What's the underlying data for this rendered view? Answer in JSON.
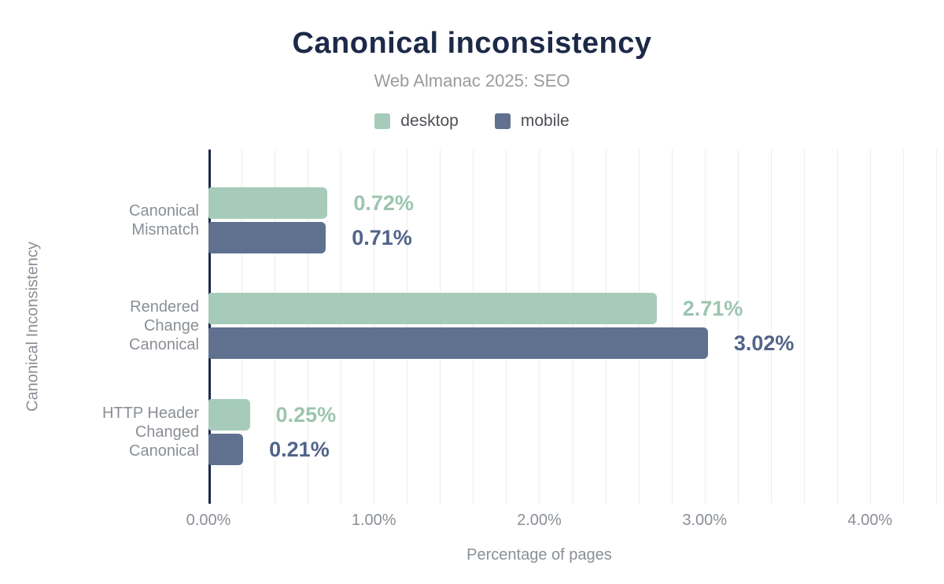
{
  "title": "Canonical inconsistency",
  "subtitle": "Web Almanac 2025: SEO",
  "colors": {
    "title": "#1c2948",
    "axis_line": "#1c2948",
    "gridline": "#ededed",
    "muted_text": "#8a8f96",
    "legend_text": "#4c4f55",
    "desktop_bar": "#a6cbba",
    "desktop_value_label": "#9cc5b0",
    "mobile_bar": "#60718f",
    "mobile_value_label": "#526488"
  },
  "chart_data": {
    "type": "bar",
    "orientation": "horizontal",
    "title": "Canonical inconsistency",
    "subtitle": "Web Almanac 2025: SEO",
    "categories": [
      "Canonical Mismatch",
      "Rendered Change Canonical",
      "HTTP Header Changed Canonical"
    ],
    "category_lines": [
      [
        "Canonical",
        "Mismatch"
      ],
      [
        "Rendered",
        "Change",
        "Canonical"
      ],
      [
        "HTTP Header",
        "Changed",
        "Canonical"
      ]
    ],
    "series": [
      {
        "name": "desktop",
        "values": [
          0.72,
          2.71,
          0.25
        ],
        "value_labels": [
          "0.72%",
          "2.71%",
          "0.25%"
        ],
        "bar_color": "#a6cbba",
        "label_color": "#9cc5b0"
      },
      {
        "name": "mobile",
        "values": [
          0.71,
          3.02,
          0.21
        ],
        "value_labels": [
          "0.71%",
          "3.02%",
          "0.21%"
        ],
        "bar_color": "#60718f",
        "label_color": "#526488"
      }
    ],
    "xlabel": "Percentage of pages",
    "ylabel": "Canonical Inconsistency",
    "xlim": [
      0,
      4.4
    ],
    "x_ticks": [
      {
        "value": 0,
        "label": "0.00%"
      },
      {
        "value": 1,
        "label": "1.00%"
      },
      {
        "value": 2,
        "label": "2.00%"
      },
      {
        "value": 3,
        "label": "3.00%"
      },
      {
        "value": 4,
        "label": "4.00%"
      }
    ],
    "gridline_step": 0.2,
    "grid": true,
    "legend_position": "top"
  }
}
